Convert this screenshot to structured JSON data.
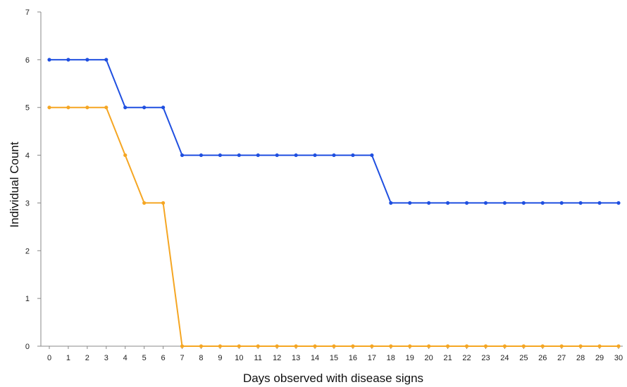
{
  "chart_data": {
    "type": "line",
    "title": "",
    "xlabel": "Days observed with disease signs",
    "ylabel": "Individual Count",
    "x": [
      0,
      1,
      2,
      3,
      4,
      5,
      6,
      7,
      8,
      9,
      10,
      11,
      12,
      13,
      14,
      15,
      16,
      17,
      18,
      19,
      20,
      21,
      22,
      23,
      24,
      25,
      26,
      27,
      28,
      29,
      30
    ],
    "xlim": [
      0,
      30
    ],
    "ylim": [
      0,
      7
    ],
    "yticks": [
      0,
      1,
      2,
      3,
      4,
      5,
      6,
      7
    ],
    "grid": false,
    "legend": "none",
    "series": [
      {
        "color": "#1f4fe0",
        "values": [
          6,
          6,
          6,
          6,
          5,
          5,
          5,
          4,
          4,
          4,
          4,
          4,
          4,
          4,
          4,
          4,
          4,
          4,
          3,
          3,
          3,
          3,
          3,
          3,
          3,
          3,
          3,
          3,
          3,
          3,
          3
        ]
      },
      {
        "color": "#f5a623",
        "values": [
          5,
          5,
          5,
          5,
          4,
          3,
          3,
          0,
          0,
          0,
          0,
          0,
          0,
          0,
          0,
          0,
          0,
          0,
          0,
          0,
          0,
          0,
          0,
          0,
          0,
          0,
          0,
          0,
          0,
          0,
          0
        ]
      }
    ]
  }
}
